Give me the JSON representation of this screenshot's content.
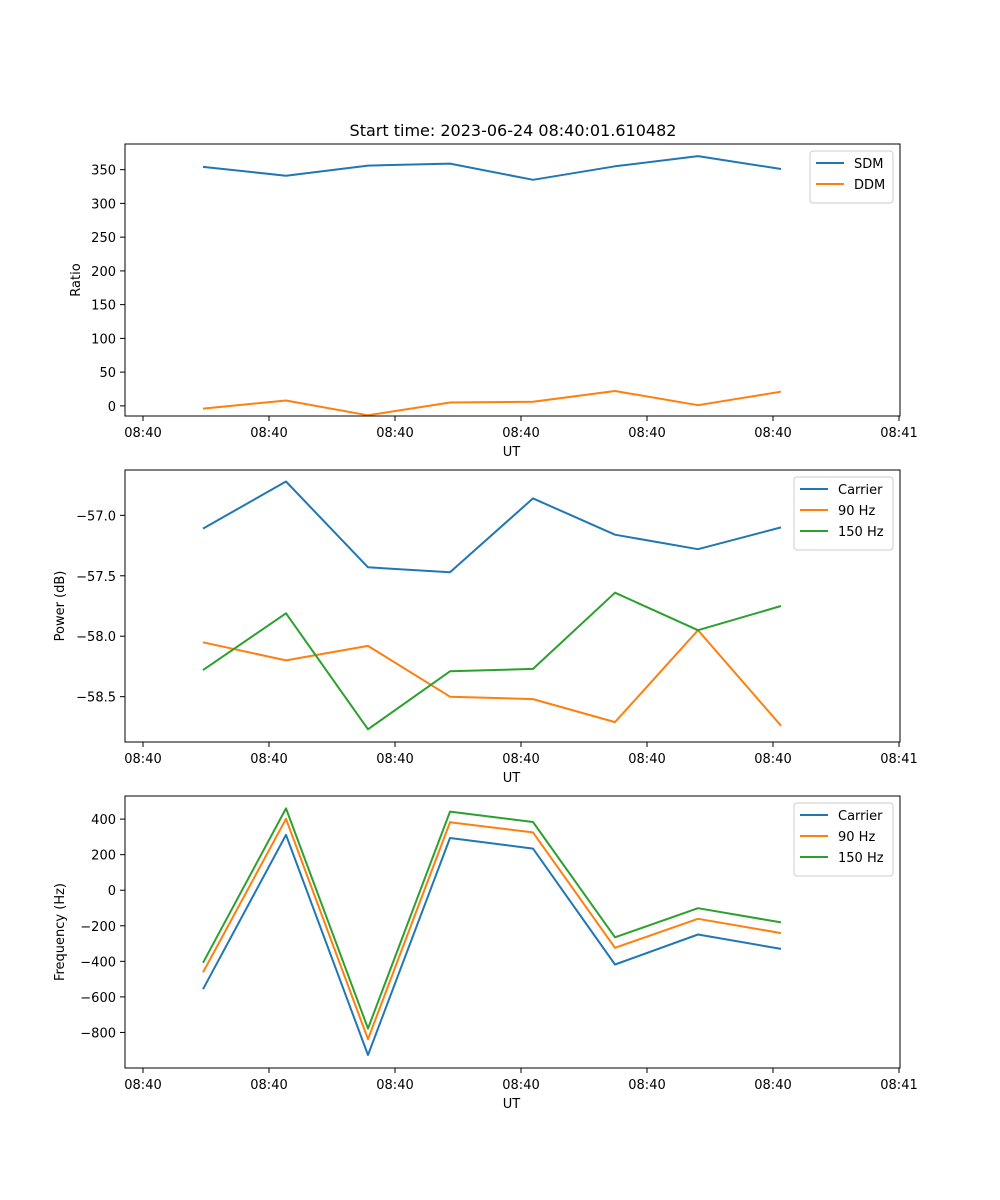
{
  "title": "Start time: 2023-06-24 08:40:01.610482",
  "chart_data": [
    {
      "type": "line",
      "xlabel": "UT",
      "ylabel": "Ratio",
      "x_ticks": [
        "08:40",
        "08:40",
        "08:40",
        "08:40",
        "08:40",
        "08:40",
        "08:41"
      ],
      "yticks": [
        0,
        50,
        100,
        150,
        200,
        250,
        300,
        350
      ],
      "ylim": [
        -15,
        388
      ],
      "legend_position": "upper right",
      "series": [
        {
          "name": "SDM",
          "color": "#1f77b4",
          "values": [
            354,
            341,
            356,
            359,
            335,
            355,
            370,
            351
          ]
        },
        {
          "name": "DDM",
          "color": "#ff7f0e",
          "values": [
            -4,
            8,
            -14,
            5,
            6,
            22,
            1,
            21
          ]
        }
      ]
    },
    {
      "type": "line",
      "xlabel": "UT",
      "ylabel": "Power (dB)",
      "x_ticks": [
        "08:40",
        "08:40",
        "08:40",
        "08:40",
        "08:40",
        "08:40",
        "08:41"
      ],
      "yticks": [
        -57.0,
        -57.5,
        -58.0,
        -58.5
      ],
      "ylim": [
        -58.875,
        -56.625
      ],
      "legend_position": "upper right",
      "series": [
        {
          "name": "Carrier",
          "color": "#1f77b4",
          "values": [
            -57.11,
            -56.72,
            -57.43,
            -57.47,
            -56.86,
            -57.16,
            -57.28,
            -57.1
          ]
        },
        {
          "name": "90 Hz",
          "color": "#ff7f0e",
          "values": [
            -58.05,
            -58.2,
            -58.08,
            -58.5,
            -58.52,
            -58.71,
            -57.95,
            -58.74
          ]
        },
        {
          "name": "150 Hz",
          "color": "#2ca02c",
          "values": [
            -58.28,
            -57.81,
            -58.77,
            -58.29,
            -58.27,
            -57.64,
            -57.95,
            -57.75
          ]
        }
      ]
    },
    {
      "type": "line",
      "xlabel": "UT",
      "ylabel": "Frequency (Hz)",
      "x_ticks": [
        "08:40",
        "08:40",
        "08:40",
        "08:40",
        "08:40",
        "08:40",
        "08:41"
      ],
      "yticks": [
        400,
        200,
        0,
        -200,
        -400,
        -600,
        -800
      ],
      "ylim": [
        -1000,
        530
      ],
      "legend_position": "upper right",
      "series": [
        {
          "name": "Carrier",
          "color": "#1f77b4",
          "values": [
            -557,
            311,
            -927,
            294,
            234,
            -418,
            -249,
            -330
          ]
        },
        {
          "name": "90 Hz",
          "color": "#ff7f0e",
          "values": [
            -462,
            402,
            -838,
            382,
            325,
            -324,
            -161,
            -241
          ]
        },
        {
          "name": "150 Hz",
          "color": "#2ca02c",
          "values": [
            -408,
            460,
            -778,
            442,
            384,
            -265,
            -101,
            -181
          ]
        }
      ]
    }
  ]
}
